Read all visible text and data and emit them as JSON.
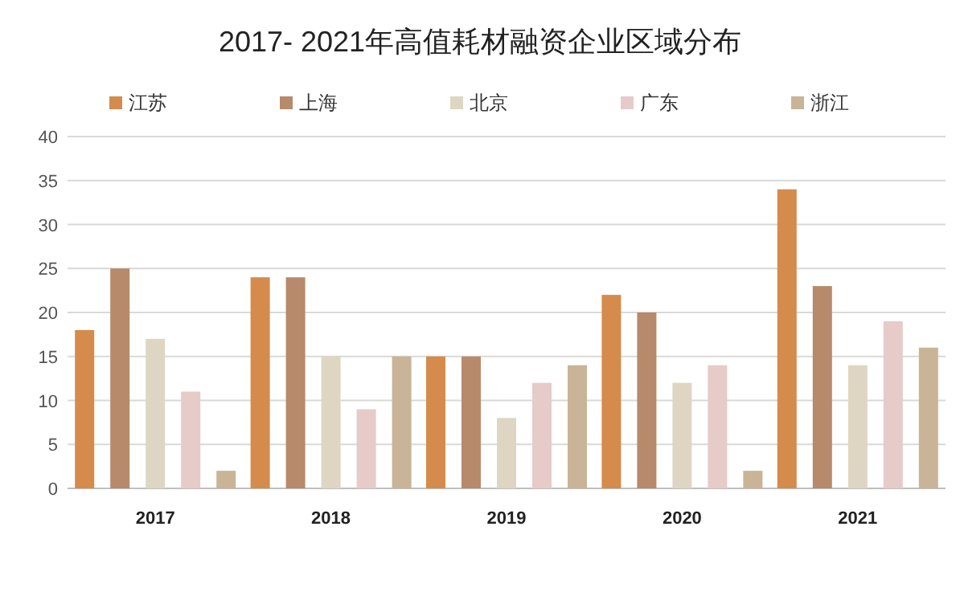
{
  "chart_data": {
    "type": "bar",
    "title": "2017- 2021年高值耗材融资企业区域分布",
    "categories": [
      "2017",
      "2018",
      "2019",
      "2020",
      "2021"
    ],
    "series": [
      {
        "name": "江苏",
        "color": "#d58b4c",
        "values": [
          18,
          24,
          15,
          22,
          34
        ]
      },
      {
        "name": "上海",
        "color": "#b68a6b",
        "values": [
          25,
          24,
          15,
          20,
          23
        ]
      },
      {
        "name": "北京",
        "color": "#ded6c2",
        "values": [
          17,
          15,
          8,
          12,
          14
        ]
      },
      {
        "name": "广东",
        "color": "#e6cbc9",
        "values": [
          11,
          9,
          12,
          14,
          19
        ]
      },
      {
        "name": "浙江",
        "color": "#c9b497",
        "values": [
          2,
          15,
          14,
          2,
          16
        ]
      }
    ],
    "ylim": [
      0,
      40
    ],
    "yticks": [
      0,
      5,
      10,
      15,
      20,
      25,
      30,
      35,
      40
    ],
    "grid": "y",
    "legend": "top"
  }
}
